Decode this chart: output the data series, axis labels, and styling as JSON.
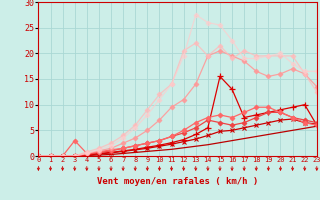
{
  "xlabel": "Vent moyen/en rafales ( km/h )",
  "bg_color": "#cceee8",
  "grid_color": "#aad8d4",
  "xlim": [
    0,
    23
  ],
  "ylim": [
    0,
    30
  ],
  "xticks": [
    0,
    1,
    2,
    3,
    4,
    5,
    6,
    7,
    8,
    9,
    10,
    11,
    12,
    13,
    14,
    15,
    16,
    17,
    18,
    19,
    20,
    21,
    22,
    23
  ],
  "yticks": [
    0,
    5,
    10,
    15,
    20,
    25,
    30
  ],
  "lines": [
    {
      "x": [
        0,
        1,
        2,
        3,
        4,
        5,
        6,
        7,
        8,
        9,
        10,
        11,
        12,
        13,
        14,
        15,
        16,
        17,
        18,
        19,
        20,
        21,
        22,
        23
      ],
      "y": [
        0,
        0,
        0,
        0,
        0.1,
        0.2,
        0.3,
        0.5,
        0.7,
        0.9,
        1.1,
        1.3,
        1.6,
        1.9,
        2.2,
        2.6,
        3.0,
        3.4,
        3.8,
        4.2,
        4.6,
        5.0,
        5.4,
        5.8
      ],
      "color": "#bb0000",
      "lw": 0.9,
      "marker": null,
      "alpha": 1.0
    },
    {
      "x": [
        0,
        1,
        2,
        3,
        4,
        5,
        6,
        7,
        8,
        9,
        10,
        11,
        12,
        13,
        14,
        15,
        16,
        17,
        18,
        19,
        20,
        21,
        22,
        23
      ],
      "y": [
        0,
        0,
        0,
        0,
        0.2,
        0.4,
        0.6,
        0.9,
        1.2,
        1.5,
        1.9,
        2.3,
        2.8,
        3.3,
        4.0,
        4.8,
        5.0,
        5.5,
        6.0,
        6.5,
        7.0,
        7.2,
        6.5,
        6.2
      ],
      "color": "#cc0000",
      "lw": 0.9,
      "marker": "x",
      "markersize": 3,
      "markeredgewidth": 0.8,
      "alpha": 1.0
    },
    {
      "x": [
        0,
        1,
        2,
        3,
        4,
        5,
        6,
        7,
        8,
        9,
        10,
        11,
        12,
        13,
        14,
        15,
        16,
        17,
        18,
        19,
        20,
        21,
        22,
        23
      ],
      "y": [
        0,
        0,
        0,
        0,
        0.2,
        0.5,
        0.7,
        1.0,
        1.3,
        1.7,
        2.1,
        2.6,
        3.2,
        4.2,
        5.5,
        15.5,
        13.0,
        7.5,
        8.0,
        8.5,
        9.0,
        9.5,
        10.0,
        6.0
      ],
      "color": "#dd0000",
      "lw": 0.9,
      "marker": "+",
      "markersize": 4,
      "markeredgewidth": 0.9,
      "alpha": 1.0
    },
    {
      "x": [
        0,
        1,
        2,
        3,
        4,
        5,
        6,
        7,
        8,
        9,
        10,
        11,
        12,
        13,
        14,
        15,
        16,
        17,
        18,
        19,
        20,
        21,
        22,
        23
      ],
      "y": [
        0,
        0,
        0,
        0,
        0.3,
        0.7,
        1.0,
        1.5,
        2.0,
        2.5,
        3.0,
        3.8,
        4.5,
        5.5,
        7.0,
        6.5,
        6.0,
        6.5,
        7.5,
        8.5,
        8.5,
        7.5,
        7.0,
        6.5
      ],
      "color": "#ee4444",
      "lw": 0.9,
      "marker": "D",
      "markersize": 2.5,
      "markeredgewidth": 0.6,
      "alpha": 1.0
    },
    {
      "x": [
        0,
        1,
        2,
        3,
        4,
        5,
        6,
        7,
        8,
        9,
        10,
        11,
        12,
        13,
        14,
        15,
        16,
        17,
        18,
        19,
        20,
        21,
        22,
        23
      ],
      "y": [
        0,
        0,
        0,
        3.0,
        0.5,
        0.8,
        1.2,
        1.5,
        2.0,
        2.5,
        3.0,
        3.8,
        5.0,
        6.5,
        7.5,
        8.0,
        7.5,
        8.5,
        9.5,
        9.5,
        8.5,
        7.5,
        6.5,
        6.0
      ],
      "color": "#ff6666",
      "lw": 0.9,
      "marker": "D",
      "markersize": 2.5,
      "markeredgewidth": 0.6,
      "alpha": 1.0
    },
    {
      "x": [
        0,
        1,
        2,
        3,
        4,
        5,
        6,
        7,
        8,
        9,
        10,
        11,
        12,
        13,
        14,
        15,
        16,
        17,
        18,
        19,
        20,
        21,
        22,
        23
      ],
      "y": [
        0,
        0,
        0,
        0,
        0.5,
        1.0,
        1.5,
        2.5,
        3.5,
        5.0,
        7.0,
        9.5,
        11.0,
        14.0,
        19.5,
        20.5,
        19.5,
        18.5,
        16.5,
        15.5,
        16.0,
        17.0,
        16.0,
        13.5
      ],
      "color": "#ff9999",
      "lw": 0.9,
      "marker": "D",
      "markersize": 2.5,
      "markeredgewidth": 0.6,
      "alpha": 0.9
    },
    {
      "x": [
        0,
        1,
        2,
        3,
        4,
        5,
        6,
        7,
        8,
        9,
        10,
        11,
        12,
        13,
        14,
        15,
        16,
        17,
        18,
        19,
        20,
        21,
        22,
        23
      ],
      "y": [
        0,
        0,
        0,
        0,
        0.8,
        1.5,
        2.5,
        4.0,
        6.0,
        9.0,
        12.0,
        14.0,
        20.5,
        22.0,
        19.5,
        21.5,
        19.0,
        20.5,
        19.5,
        19.5,
        19.5,
        19.5,
        16.0,
        12.5
      ],
      "color": "#ffbbbb",
      "lw": 0.9,
      "marker": "D",
      "markersize": 2.5,
      "markeredgewidth": 0.6,
      "alpha": 0.8
    },
    {
      "x": [
        0,
        1,
        2,
        3,
        4,
        5,
        6,
        7,
        8,
        9,
        10,
        11,
        12,
        13,
        14,
        15,
        16,
        17,
        18,
        19,
        20,
        21,
        22,
        23
      ],
      "y": [
        0,
        0,
        0,
        0,
        0.5,
        1.2,
        2.0,
        3.5,
        5.5,
        8.0,
        11.0,
        14.0,
        19.5,
        27.5,
        26.0,
        25.5,
        22.5,
        19.0,
        19.0,
        19.5,
        20.0,
        18.0,
        16.5,
        16.5
      ],
      "color": "#ffcccc",
      "lw": 0.9,
      "marker": "D",
      "markersize": 2.5,
      "markeredgewidth": 0.6,
      "alpha": 0.7
    }
  ],
  "arrow_color": "#cc0000"
}
